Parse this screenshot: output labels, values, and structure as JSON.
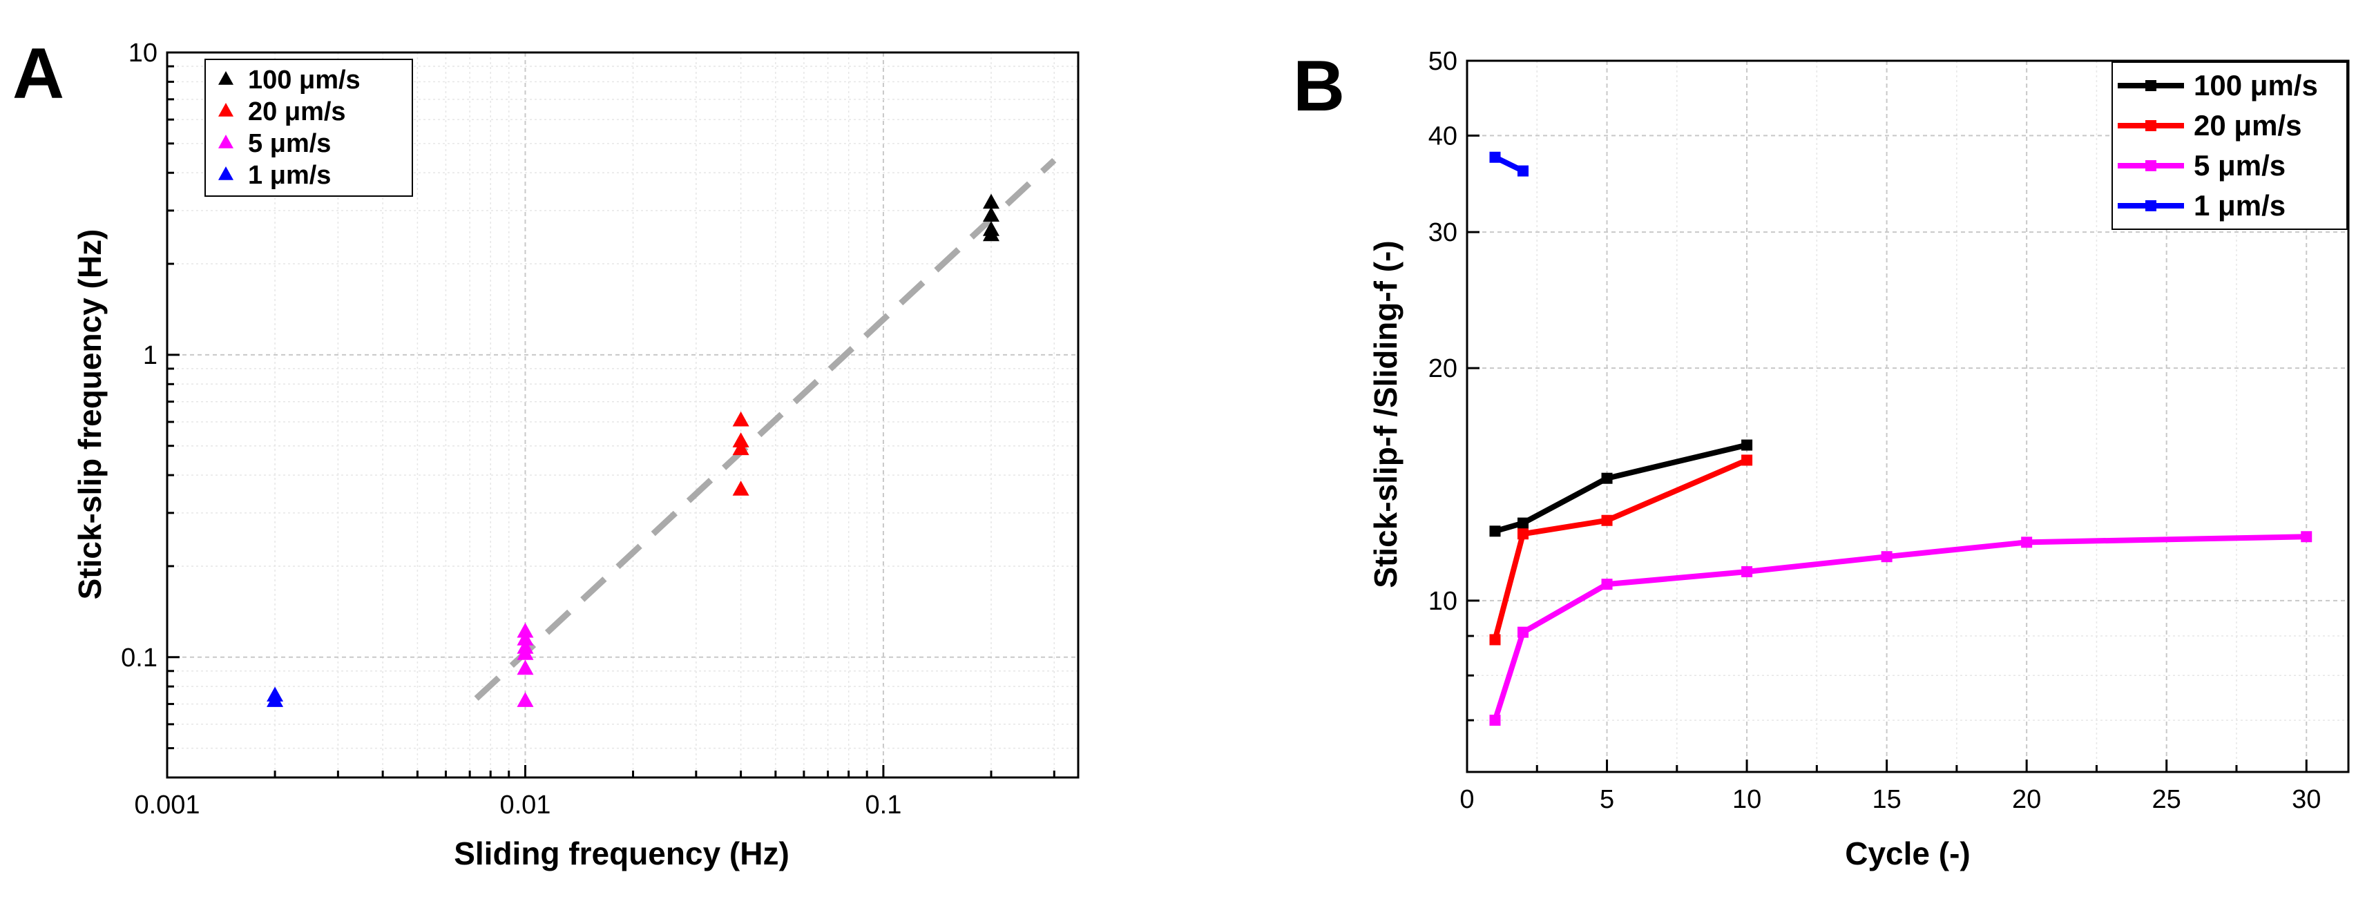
{
  "chart_data": [
    {
      "panel": "A",
      "type": "scatter",
      "xlabel": "Sliding frequency (Hz)",
      "ylabel": "Stick-slip frequency (Hz)",
      "xscale": "log",
      "yscale": "log",
      "xlim": [
        0.001,
        0.35
      ],
      "ylim": [
        0.04,
        10
      ],
      "x_ticks": [
        {
          "value": 0.001,
          "label": "0.001"
        },
        {
          "value": 0.01,
          "label": "0.01"
        },
        {
          "value": 0.1,
          "label": "0.1"
        }
      ],
      "y_ticks": [
        {
          "value": 0.1,
          "label": "0.1"
        },
        {
          "value": 1,
          "label": "1"
        },
        {
          "value": 10,
          "label": "10"
        }
      ],
      "grid": true,
      "legend_position": "top-left",
      "series": [
        {
          "name": "100 μm/s",
          "color": "#000000",
          "marker": "triangle",
          "points": [
            [
              0.2,
              3.2
            ],
            [
              0.2,
              2.9
            ],
            [
              0.2,
              2.6
            ],
            [
              0.2,
              2.5
            ]
          ]
        },
        {
          "name": "20 μm/s",
          "color": "#ff0000",
          "marker": "triangle",
          "points": [
            [
              0.04,
              0.61
            ],
            [
              0.04,
              0.52
            ],
            [
              0.04,
              0.49
            ],
            [
              0.04,
              0.36
            ]
          ]
        },
        {
          "name": "5 μm/s",
          "color": "#ff00ff",
          "marker": "triangle",
          "points": [
            [
              0.01,
              0.122
            ],
            [
              0.01,
              0.115
            ],
            [
              0.01,
              0.108
            ],
            [
              0.01,
              0.103
            ],
            [
              0.01,
              0.092
            ],
            [
              0.01,
              0.072
            ]
          ]
        },
        {
          "name": "1 μm/s",
          "color": "#0000ff",
          "marker": "triangle",
          "points": [
            [
              0.002,
              0.075
            ],
            [
              0.002,
              0.072
            ]
          ]
        }
      ],
      "fit_line": {
        "color": "#aaaaaa",
        "style": "dashed",
        "points": [
          [
            0.0073,
            0.073
          ],
          [
            0.3,
            4.4
          ]
        ]
      }
    },
    {
      "panel": "B",
      "type": "line",
      "xlabel": "Cycle (-)",
      "ylabel": "Stick-slip-f /Sliding-f (-)",
      "xscale": "linear",
      "yscale": "log",
      "xlim": [
        0,
        31.5
      ],
      "ylim": [
        6,
        50
      ],
      "x_ticks": [
        {
          "value": 0,
          "label": "0"
        },
        {
          "value": 5,
          "label": "5"
        },
        {
          "value": 10,
          "label": "10"
        },
        {
          "value": 15,
          "label": "15"
        },
        {
          "value": 20,
          "label": "20"
        },
        {
          "value": 25,
          "label": "25"
        },
        {
          "value": 30,
          "label": "30"
        }
      ],
      "y_ticks": [
        {
          "value": 10,
          "label": "10"
        },
        {
          "value": 20,
          "label": "20"
        },
        {
          "value": 30,
          "label": "30"
        },
        {
          "value": 40,
          "label": "40"
        },
        {
          "value": 50,
          "label": "50"
        }
      ],
      "grid": true,
      "legend_position": "top-right",
      "series": [
        {
          "name": "100 μm/s",
          "color": "#000000",
          "marker": "square",
          "x": [
            1,
            2,
            5,
            10
          ],
          "values": [
            12.3,
            12.6,
            14.4,
            15.9
          ]
        },
        {
          "name": "20 μm/s",
          "color": "#ff0000",
          "marker": "square",
          "x": [
            1,
            2,
            5,
            10
          ],
          "values": [
            8.9,
            12.2,
            12.7,
            15.2
          ]
        },
        {
          "name": "5 μm/s",
          "color": "#ff00ff",
          "marker": "square",
          "x": [
            1,
            2,
            5,
            10,
            15,
            20,
            30
          ],
          "values": [
            7.0,
            9.1,
            10.5,
            10.9,
            11.4,
            11.9,
            12.1
          ]
        },
        {
          "name": "1 μm/s",
          "color": "#0000ff",
          "marker": "square",
          "x": [
            1,
            2
          ],
          "values": [
            37.5,
            36.0
          ]
        }
      ]
    }
  ]
}
